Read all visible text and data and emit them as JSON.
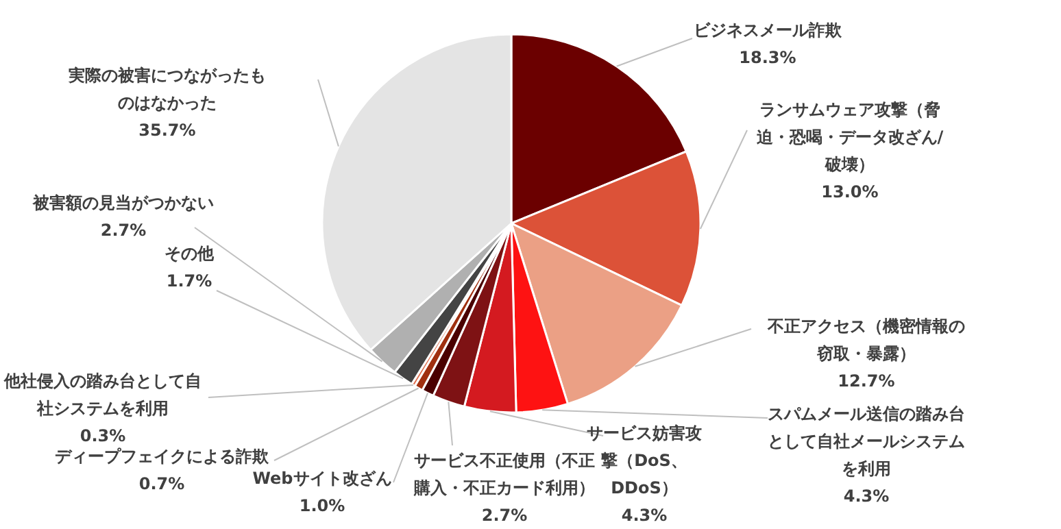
{
  "chart_data": {
    "type": "pie",
    "categories": [
      "ビジネスメール詐欺",
      "ランサムウェア攻撃（脅迫・恐喝・データ改ざん/破壊）",
      "不正アクセス（機密情報の窃取・暴露）",
      "スパムメール送信の踏み台として自社メールシステムを利用",
      "サービス妨害攻撃（DoS、DDoS）",
      "サービス不正使用（不正購入・不正カード利用）",
      "Webサイト改ざん",
      "ディープフェイクによる詐欺",
      "他社侵入の踏み台として自社システムを利用",
      "その他",
      "被害額の見当がつかない",
      "実際の被害につながったものはなかった"
    ],
    "values": [
      18.3,
      13.0,
      12.7,
      4.3,
      4.3,
      2.7,
      1.0,
      0.7,
      0.3,
      1.7,
      2.7,
      35.7
    ],
    "value_labels": [
      "18.3%",
      "13.0%",
      "12.7%",
      "4.3%",
      "4.3%",
      "2.7%",
      "1.0%",
      "0.7%",
      "0.3%",
      "1.7%",
      "2.7%",
      "35.7%"
    ],
    "colors": [
      "#6b0000",
      "#dc5238",
      "#eba085",
      "#fe1212",
      "#d41a20",
      "#7e1214",
      "#4a0000",
      "#a03010",
      "#e07050",
      "#444444",
      "#b0b0b0",
      "#e4e4e4"
    ],
    "legend": false
  }
}
